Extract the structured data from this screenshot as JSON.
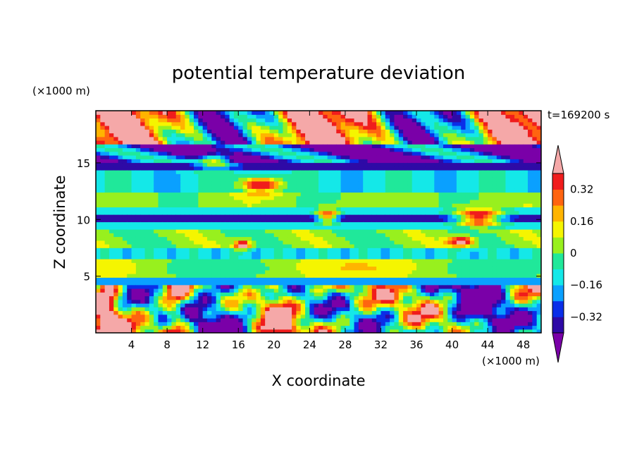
{
  "chart_data": {
    "type": "heatmap",
    "title": "potential temperature deviation",
    "xlabel": "X coordinate",
    "ylabel": "Z coordinate",
    "x_unit": "(×1000 m)",
    "y_unit": "(×1000 m)",
    "time_label": "t=169200 s",
    "xlim": [
      0,
      50
    ],
    "ylim": [
      0,
      19.6
    ],
    "x_ticks": [
      4,
      8,
      12,
      16,
      20,
      24,
      28,
      32,
      36,
      40,
      44,
      48
    ],
    "y_ticks": [
      5,
      10,
      15
    ],
    "colorbar": {
      "levels": [
        -0.4,
        -0.32,
        -0.24,
        -0.16,
        -0.08,
        0,
        0.08,
        0.16,
        0.24,
        0.32,
        0.4
      ],
      "tick_labels": [
        "0.32",
        "0.16",
        "0",
        "−0.16",
        "−0.32"
      ],
      "tick_values": [
        0.32,
        0.16,
        0,
        -0.16,
        -0.32
      ],
      "colors": [
        "#7a00a8",
        "#2e0aa6",
        "#0a2ee8",
        "#0aa0ff",
        "#14e8e8",
        "#20e89a",
        "#98f01e",
        "#f5f500",
        "#ffb400",
        "#ff6410",
        "#f01c1c",
        "#f5a8a8"
      ],
      "extend": "both"
    }
  }
}
